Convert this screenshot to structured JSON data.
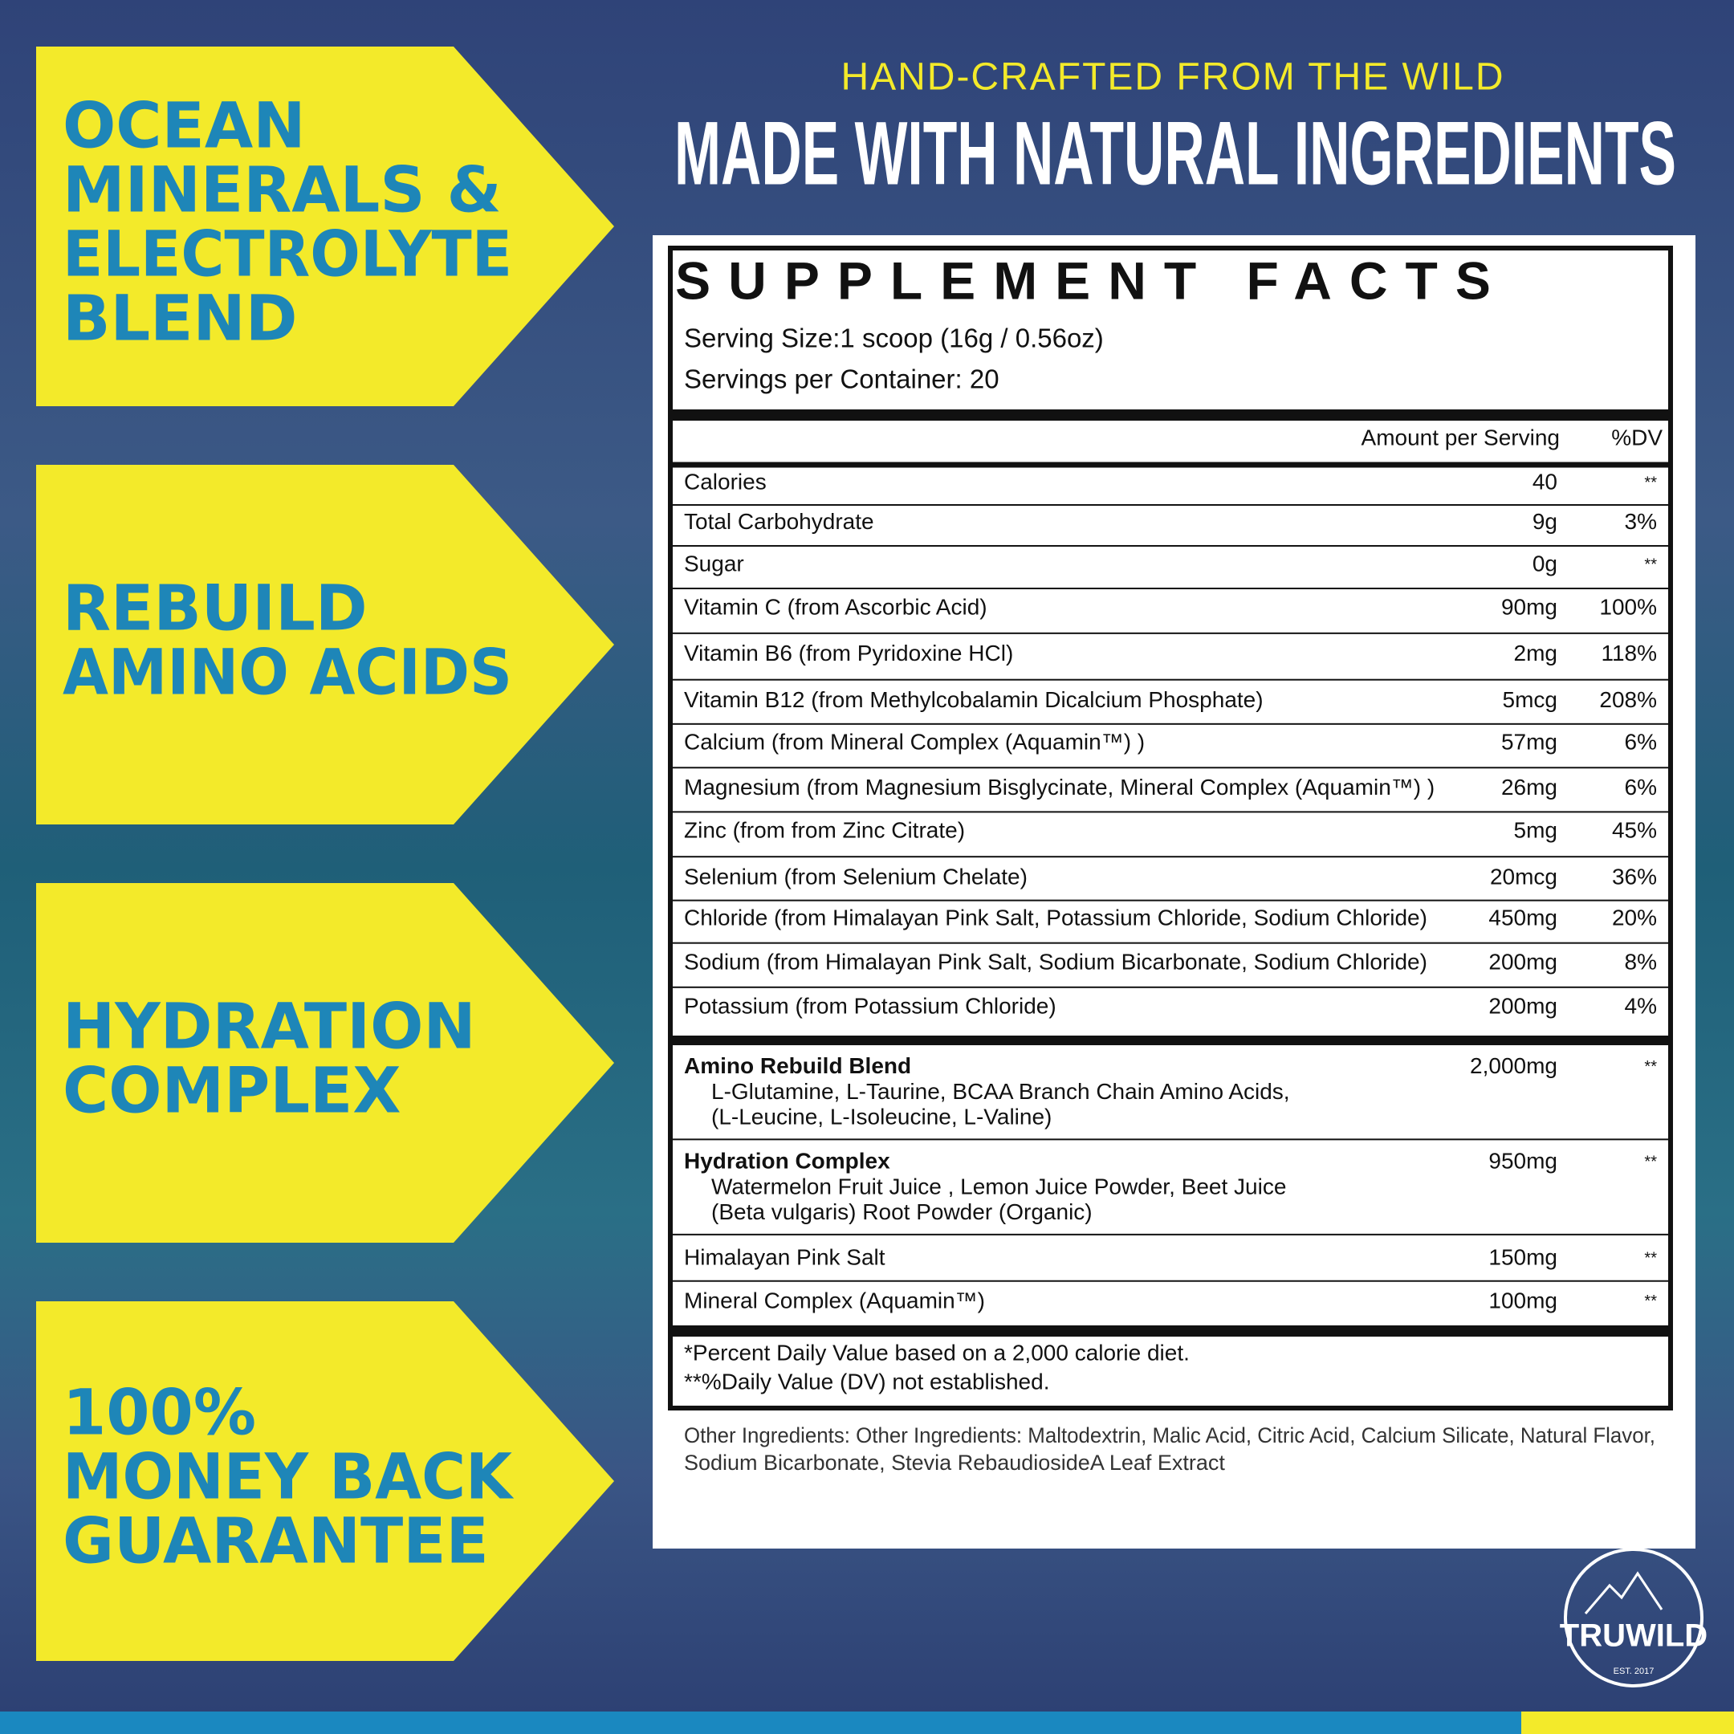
{
  "badges": [
    {
      "lines": [
        "OCEAN",
        "MINERALS &",
        "ELECTROLYTE",
        "BLEND"
      ]
    },
    {
      "lines": [
        "REBUILD",
        "AMINO ACIDS"
      ]
    },
    {
      "lines": [
        "HYDRATION",
        "COMPLEX"
      ]
    },
    {
      "lines": [
        "100%",
        "MONEY BACK",
        "GUARANTEE"
      ]
    }
  ],
  "header": {
    "tagline": "HAND-CRAFTED FROM THE WILD",
    "headline": "MADE WITH NATURAL INGREDIENTS"
  },
  "facts": {
    "title": "SUPPLEMENT FACTS",
    "serving_size": "Serving Size:1 scoop (16g / 0.56oz)",
    "servings": "Servings per Container: 20",
    "columns": [
      "Amount per Serving",
      "%DV"
    ],
    "rows": [
      [
        "Calories",
        "40",
        "**"
      ],
      [
        "Total Carbohydrate",
        "9g",
        "3%"
      ],
      [
        "Sugar",
        "0g",
        "**"
      ],
      [
        "Vitamin C (from Ascorbic Acid)",
        "90mg",
        "100%"
      ],
      [
        "Vitamin B6 (from Pyridoxine HCl)",
        "2mg",
        "118%"
      ],
      [
        "Vitamin B12 (from Methylcobalamin Dicalcium Phosphate)",
        "5mcg",
        "208%"
      ],
      [
        "Calcium (from Mineral Complex (Aquamin™) )",
        "57mg",
        "6%"
      ],
      [
        "Magnesium (from Magnesium Bisglycinate, Mineral Complex (Aquamin™) )",
        "26mg",
        "6%"
      ],
      [
        "Zinc (from from Zinc Citrate)",
        "5mg",
        "45%"
      ],
      [
        "Selenium (from Selenium Chelate)",
        "20mcg",
        "36%"
      ],
      [
        "Chloride (from Himalayan Pink Salt, Potassium Chloride, Sodium Chloride)",
        "450mg",
        "20%"
      ],
      [
        "Sodium (from Himalayan Pink Salt, Sodium Bicarbonate, Sodium Chloride)",
        "200mg",
        "8%"
      ],
      [
        "Potassium (from Potassium Chloride)",
        "200mg",
        "4%"
      ]
    ],
    "blends": [
      {
        "name": "Amino Rebuild Blend",
        "ingredients": [
          "L-Glutamine, L-Taurine, BCAA Branch Chain Amino Acids,",
          "(L-Leucine, L-Isoleucine, L-Valine)"
        ],
        "amount": "2,000mg",
        "dv": "**"
      },
      {
        "name": "Hydration Complex",
        "ingredients": [
          "Watermelon Fruit Juice , Lemon Juice Powder, Beet Juice",
          "(Beta vulgaris) Root Powder (Organic)"
        ],
        "amount": "950mg",
        "dv": "**"
      },
      {
        "name": "Himalayan Pink Salt",
        "ingredients": [],
        "amount": "150mg",
        "dv": "**"
      },
      {
        "name": "Mineral Complex (Aquamin™)",
        "ingredients": [],
        "amount": "100mg",
        "dv": "**"
      }
    ],
    "footnotes": [
      "*Percent Daily Value based on a 2,000 calorie diet.",
      "**%Daily Value (DV) not established."
    ],
    "other_ingredients": [
      "Other Ingredients: Other Ingredients: Maltodextrin, Malic Acid, Citric Acid, Calcium Silicate, Natural Flavor,",
      "Sodium Bicarbonate, Stevia RebaudiosideA Leaf Extract"
    ]
  },
  "logo": {
    "brand": "TRUWILD",
    "est": "EST. 2017"
  }
}
